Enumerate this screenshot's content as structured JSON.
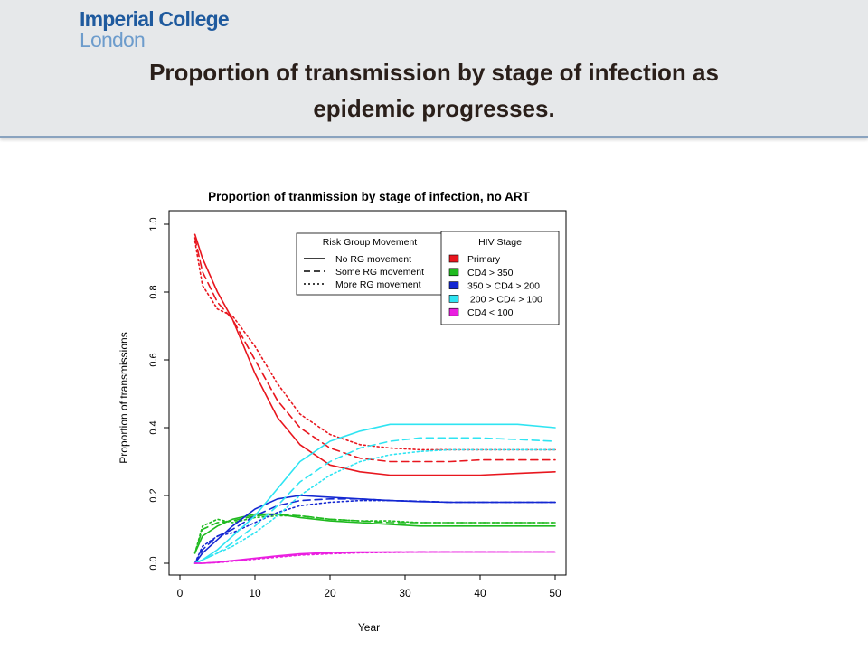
{
  "logo": {
    "line1": "Imperial College",
    "line2": "London"
  },
  "slide": {
    "title_line1": "Proportion of transmission by stage of infection as",
    "title_line2": "epidemic progresses."
  },
  "colors": {
    "primary": "#e8161e",
    "cd4_350": "#1fba1f",
    "cd4_350_200": "#1428d2",
    "cd4_200_100": "#2fe4f2",
    "cd4_100": "#ea1fe0",
    "header_bg": "#e6e8ea",
    "header_rule": "#8aa3bf"
  },
  "chart_data": {
    "type": "line",
    "title": "Proportion of tranmission by stage of infection, no ART",
    "xlabel": "Year",
    "ylabel": "Proportion of transmissions",
    "xlim": [
      0,
      52
    ],
    "ylim": [
      0,
      1
    ],
    "xticks": [
      0,
      10,
      20,
      30,
      40,
      50
    ],
    "yticks": [
      "0.0",
      "0.2",
      "0.4",
      "0.6",
      "0.8",
      "1.0"
    ],
    "grid": false,
    "legend_style": {
      "title": "Risk Group Movement",
      "entries": [
        {
          "label": "No RG movement",
          "dash": "solid"
        },
        {
          "label": "Some RG movement",
          "dash": "dashed"
        },
        {
          "label": "More RG movement",
          "dash": "dotted"
        }
      ]
    },
    "legend_stage": {
      "title": "HIV Stage",
      "entries": [
        {
          "label": "Primary",
          "color": "#e8161e"
        },
        {
          "label": "CD4 > 350",
          "color": "#1fba1f"
        },
        {
          "label": "350 > CD4 > 200",
          "color": "#1428d2"
        },
        {
          "label": " 200 > CD4 > 100",
          "color": "#2fe4f2"
        },
        {
          "label": "CD4 < 100",
          "color": "#ea1fe0"
        }
      ]
    },
    "x": [
      2,
      3,
      5,
      7,
      10,
      13,
      16,
      20,
      24,
      28,
      32,
      36,
      40,
      45,
      50
    ],
    "series": [
      {
        "stage": "Primary",
        "color": "#e8161e",
        "dash": "solid",
        "values": [
          0.97,
          0.9,
          0.8,
          0.72,
          0.56,
          0.43,
          0.35,
          0.29,
          0.27,
          0.26,
          0.26,
          0.26,
          0.26,
          0.265,
          0.27
        ]
      },
      {
        "stage": "Primary",
        "color": "#e8161e",
        "dash": "dashed",
        "values": [
          0.96,
          0.86,
          0.77,
          0.72,
          0.6,
          0.48,
          0.4,
          0.34,
          0.31,
          0.3,
          0.3,
          0.3,
          0.305,
          0.305,
          0.305
        ]
      },
      {
        "stage": "Primary",
        "color": "#e8161e",
        "dash": "dotted",
        "values": [
          0.95,
          0.82,
          0.75,
          0.73,
          0.64,
          0.53,
          0.44,
          0.38,
          0.35,
          0.34,
          0.335,
          0.335,
          0.335,
          0.335,
          0.335
        ]
      },
      {
        "stage": "CD4 > 350",
        "color": "#1fba1f",
        "dash": "solid",
        "values": [
          0.03,
          0.08,
          0.11,
          0.13,
          0.145,
          0.145,
          0.135,
          0.125,
          0.12,
          0.115,
          0.11,
          0.11,
          0.11,
          0.11,
          0.11
        ]
      },
      {
        "stage": "CD4 > 350",
        "color": "#1fba1f",
        "dash": "dashed",
        "values": [
          0.03,
          0.1,
          0.12,
          0.125,
          0.14,
          0.145,
          0.14,
          0.13,
          0.125,
          0.12,
          0.12,
          0.12,
          0.12,
          0.12,
          0.12
        ]
      },
      {
        "stage": "CD4 > 350",
        "color": "#1fba1f",
        "dash": "dotted",
        "values": [
          0.03,
          0.11,
          0.13,
          0.12,
          0.135,
          0.14,
          0.14,
          0.13,
          0.125,
          0.125,
          0.12,
          0.12,
          0.12,
          0.12,
          0.12
        ]
      },
      {
        "stage": "350 > CD4 > 200",
        "color": "#1428d2",
        "dash": "solid",
        "values": [
          0.0,
          0.03,
          0.07,
          0.11,
          0.16,
          0.19,
          0.2,
          0.195,
          0.19,
          0.185,
          0.182,
          0.18,
          0.18,
          0.18,
          0.18
        ]
      },
      {
        "stage": "350 > CD4 > 200",
        "color": "#1428d2",
        "dash": "dashed",
        "values": [
          0.0,
          0.04,
          0.08,
          0.1,
          0.14,
          0.17,
          0.185,
          0.19,
          0.19,
          0.185,
          0.183,
          0.18,
          0.18,
          0.18,
          0.18
        ]
      },
      {
        "stage": "350 > CD4 > 200",
        "color": "#1428d2",
        "dash": "dotted",
        "values": [
          0.0,
          0.05,
          0.08,
          0.09,
          0.12,
          0.15,
          0.17,
          0.18,
          0.185,
          0.185,
          0.183,
          0.18,
          0.18,
          0.18,
          0.18
        ]
      },
      {
        "stage": "200 > CD4 > 100",
        "color": "#2fe4f2",
        "dash": "solid",
        "values": [
          0.0,
          0.01,
          0.04,
          0.08,
          0.14,
          0.22,
          0.3,
          0.36,
          0.39,
          0.41,
          0.41,
          0.41,
          0.41,
          0.41,
          0.4
        ]
      },
      {
        "stage": "200 > CD4 > 100",
        "color": "#2fe4f2",
        "dash": "dashed",
        "values": [
          0.0,
          0.01,
          0.03,
          0.06,
          0.11,
          0.17,
          0.24,
          0.3,
          0.34,
          0.36,
          0.37,
          0.37,
          0.37,
          0.365,
          0.36
        ]
      },
      {
        "stage": "200 > CD4 > 100",
        "color": "#2fe4f2",
        "dash": "dotted",
        "values": [
          0.0,
          0.01,
          0.03,
          0.05,
          0.09,
          0.14,
          0.2,
          0.26,
          0.3,
          0.32,
          0.33,
          0.335,
          0.335,
          0.335,
          0.335
        ]
      },
      {
        "stage": "CD4 < 100",
        "color": "#ea1fe0",
        "dash": "solid",
        "values": [
          0.0,
          0.0,
          0.003,
          0.008,
          0.015,
          0.022,
          0.028,
          0.032,
          0.033,
          0.033,
          0.033,
          0.033,
          0.033,
          0.033,
          0.033
        ]
      },
      {
        "stage": "CD4 < 100",
        "color": "#ea1fe0",
        "dash": "dashed",
        "values": [
          0.0,
          0.0,
          0.003,
          0.007,
          0.014,
          0.02,
          0.026,
          0.03,
          0.032,
          0.033,
          0.034,
          0.034,
          0.034,
          0.034,
          0.034
        ]
      },
      {
        "stage": "CD4 < 100",
        "color": "#ea1fe0",
        "dash": "dotted",
        "values": [
          0.0,
          0.0,
          0.002,
          0.006,
          0.012,
          0.018,
          0.024,
          0.028,
          0.031,
          0.032,
          0.033,
          0.034,
          0.034,
          0.034,
          0.034
        ]
      }
    ]
  }
}
